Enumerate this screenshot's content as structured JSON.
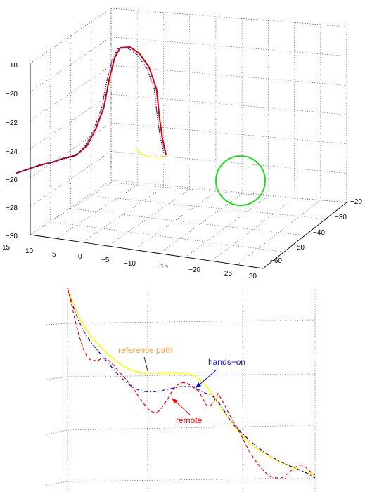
{
  "chart_data": [
    {
      "type": "line",
      "projection": "3d",
      "title": "",
      "xlabel": "",
      "ylabel": "",
      "zlabel": "",
      "grid": true,
      "z_ticks": [
        "−18",
        "−20",
        "−22",
        "−24",
        "−26",
        "−28",
        "−30"
      ],
      "x_ticks": [
        "15",
        "10",
        "5",
        "0",
        "−5",
        "−10",
        "−15",
        "−20",
        "−25",
        "−30"
      ],
      "y_ticks": [
        "−20",
        "−30",
        "−40",
        "−50",
        "−60"
      ],
      "series": [
        {
          "color": "#ffff00",
          "style": "solid",
          "points": [
            [
              12,
              -35,
              -26.1
            ],
            [
              9,
              -36,
              -26.4
            ],
            [
              6,
              -37,
              -26.2
            ],
            [
              4,
              -38,
              -26.0
            ],
            [
              3,
              -39,
              -25.7
            ]
          ]
        },
        {
          "color": "#e00000",
          "style": "solid",
          "points": [
            [
              3,
              -39,
              -25.7
            ],
            [
              3.5,
              -40,
              -24.5
            ],
            [
              4,
              -40.5,
              -23.0
            ],
            [
              4.5,
              -41,
              -21.0
            ],
            [
              6,
              -41.5,
              -19.5
            ],
            [
              8,
              -42,
              -18.6
            ],
            [
              10,
              -42.5,
              -18.2
            ],
            [
              12,
              -43,
              -18.3
            ],
            [
              13,
              -43.5,
              -19.0
            ],
            [
              14,
              -44,
              -20.5
            ],
            [
              15,
              -44.5,
              -22.5
            ],
            [
              16.5,
              -45,
              -24.0
            ],
            [
              18,
              -46,
              -25.2
            ],
            [
              20,
              -47,
              -25.9
            ],
            [
              22,
              -48,
              -26.1
            ],
            [
              24,
              -49,
              -26.4
            ],
            [
              26,
              -50,
              -26.6
            ],
            [
              28,
              -51,
              -26.9
            ],
            [
              30,
              -52,
              -27.2
            ]
          ]
        },
        {
          "color": "#0000cc",
          "style": "dotted",
          "points": [
            [
              3.5,
              -39,
              -25.6
            ],
            [
              4,
              -40,
              -24.4
            ],
            [
              4.5,
              -40.5,
              -23.0
            ],
            [
              5,
              -41,
              -21.0
            ],
            [
              6.5,
              -41.5,
              -19.6
            ],
            [
              8.5,
              -42,
              -18.7
            ],
            [
              10.5,
              -42.5,
              -18.3
            ],
            [
              12.5,
              -43,
              -18.4
            ],
            [
              13.5,
              -43.5,
              -19.1
            ],
            [
              14.5,
              -44,
              -20.6
            ],
            [
              15.5,
              -44.5,
              -22.6
            ],
            [
              17,
              -45,
              -24.1
            ],
            [
              18.5,
              -46,
              -25.3
            ],
            [
              20.5,
              -47,
              -26.0
            ],
            [
              22.5,
              -48,
              -26.2
            ],
            [
              24.5,
              -49,
              -26.5
            ],
            [
              26.5,
              -50,
              -26.7
            ],
            [
              28.5,
              -51,
              -27.0
            ],
            [
              30,
              -52,
              -27.2
            ]
          ]
        }
      ],
      "highlight": "green-circle"
    },
    {
      "type": "line",
      "projection": "3d-zoom",
      "title": "",
      "grid": true,
      "annotations": [
        {
          "text": "reference path",
          "color": "#ff9a3c"
        },
        {
          "text": "hands−on",
          "color": "#0000ff"
        },
        {
          "text": "remote",
          "color": "#ff0000"
        }
      ],
      "series": [
        {
          "label": "reference path",
          "color": "#ffff00",
          "style": "solid"
        },
        {
          "label": "hands−on",
          "color": "#0000ff",
          "style": "dash-dot"
        },
        {
          "label": "remote",
          "color": "#ff0000",
          "style": "dashed"
        }
      ]
    }
  ]
}
